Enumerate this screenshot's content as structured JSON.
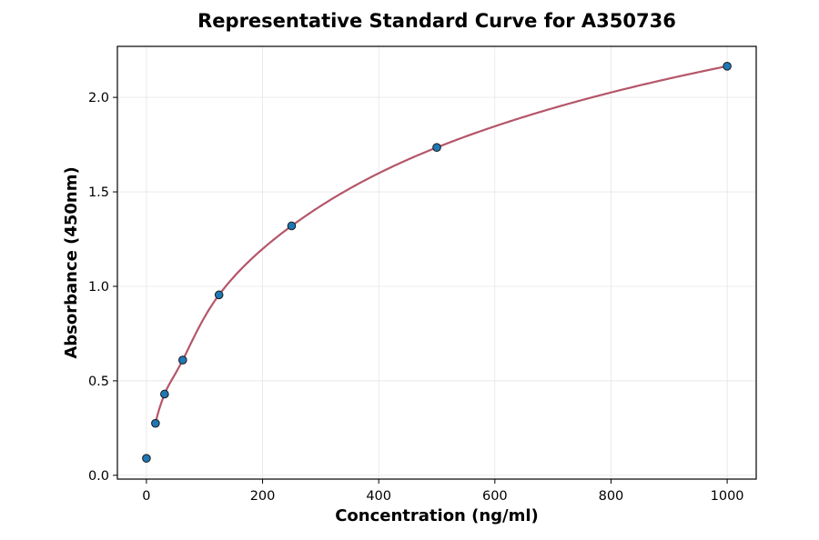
{
  "chart_data": {
    "type": "scatter",
    "title": "Representative Standard Curve for A350736",
    "xlabel": "Concentration (ng/ml)",
    "ylabel": "Absorbance (450nm)",
    "xlim": [
      -50,
      1050
    ],
    "ylim": [
      -0.02,
      2.27
    ],
    "xticks": [
      0,
      200,
      400,
      600,
      800,
      1000
    ],
    "yticks": [
      0.0,
      0.5,
      1.0,
      1.5,
      2.0
    ],
    "xtick_labels": [
      "0",
      "200",
      "400",
      "600",
      "800",
      "1000"
    ],
    "ytick_labels": [
      "0.0",
      "0.5",
      "1.0",
      "1.5",
      "2.0"
    ],
    "grid": true,
    "series": [
      {
        "kind": "points",
        "x": [
          0,
          15.6,
          31.25,
          62.5,
          125,
          250,
          500,
          1000
        ],
        "y": [
          0.09,
          0.275,
          0.43,
          0.61,
          0.955,
          1.32,
          1.735,
          2.165
        ],
        "color": "#1f77b4",
        "edge_color": "#1a1a1a"
      },
      {
        "kind": "fit_curve",
        "x_range": [
          15.6,
          1000
        ],
        "color": "#b5566a"
      }
    ]
  }
}
